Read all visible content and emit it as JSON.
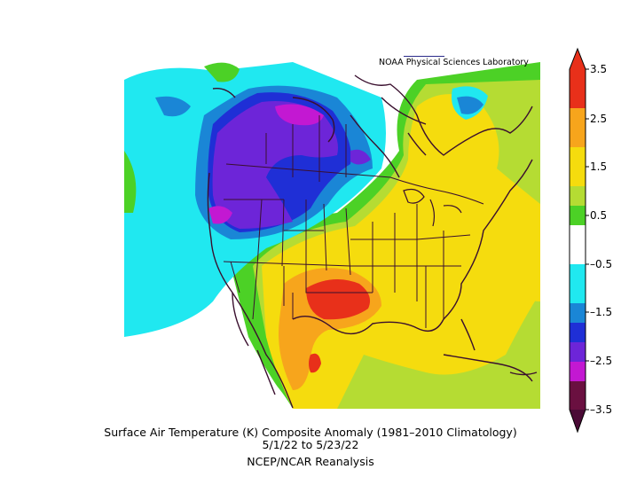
{
  "map": {
    "credit": "NOAA Physical Sciences Laboratory",
    "title_line1": "Surface Air Temperature (K) Composite Anomaly (1981–2010 Climatology)",
    "title_line2": "5/1/22  to 5/23/22",
    "title_line3": "NCEP/NCAR Reanalysis",
    "region": "North America"
  },
  "colorbar": {
    "labels": [
      "3.5",
      "2.5",
      "1.5",
      "0.5",
      "–0.5",
      "–1.5",
      "–2.5",
      "–3.5"
    ],
    "colors": {
      "c_gt3": "#e8301a",
      "c_2_3": "#f7a51c",
      "c_1_2": "#f5dc0e",
      "c_05_1": "#b5dc33",
      "c_0_05": "#4cd126",
      "c_neutral": "#ffffff",
      "c_m05": "#20e8f0",
      "c_m1": "#1a86d6",
      "c_m15": "#1f2fd6",
      "c_m2": "#6d25d8",
      "c_m25": "#c318d2",
      "c_m3": "#6a1040",
      "c_top_arrow": "#e8301a",
      "c_bottom_arrow": "#4a0a36"
    }
  }
}
